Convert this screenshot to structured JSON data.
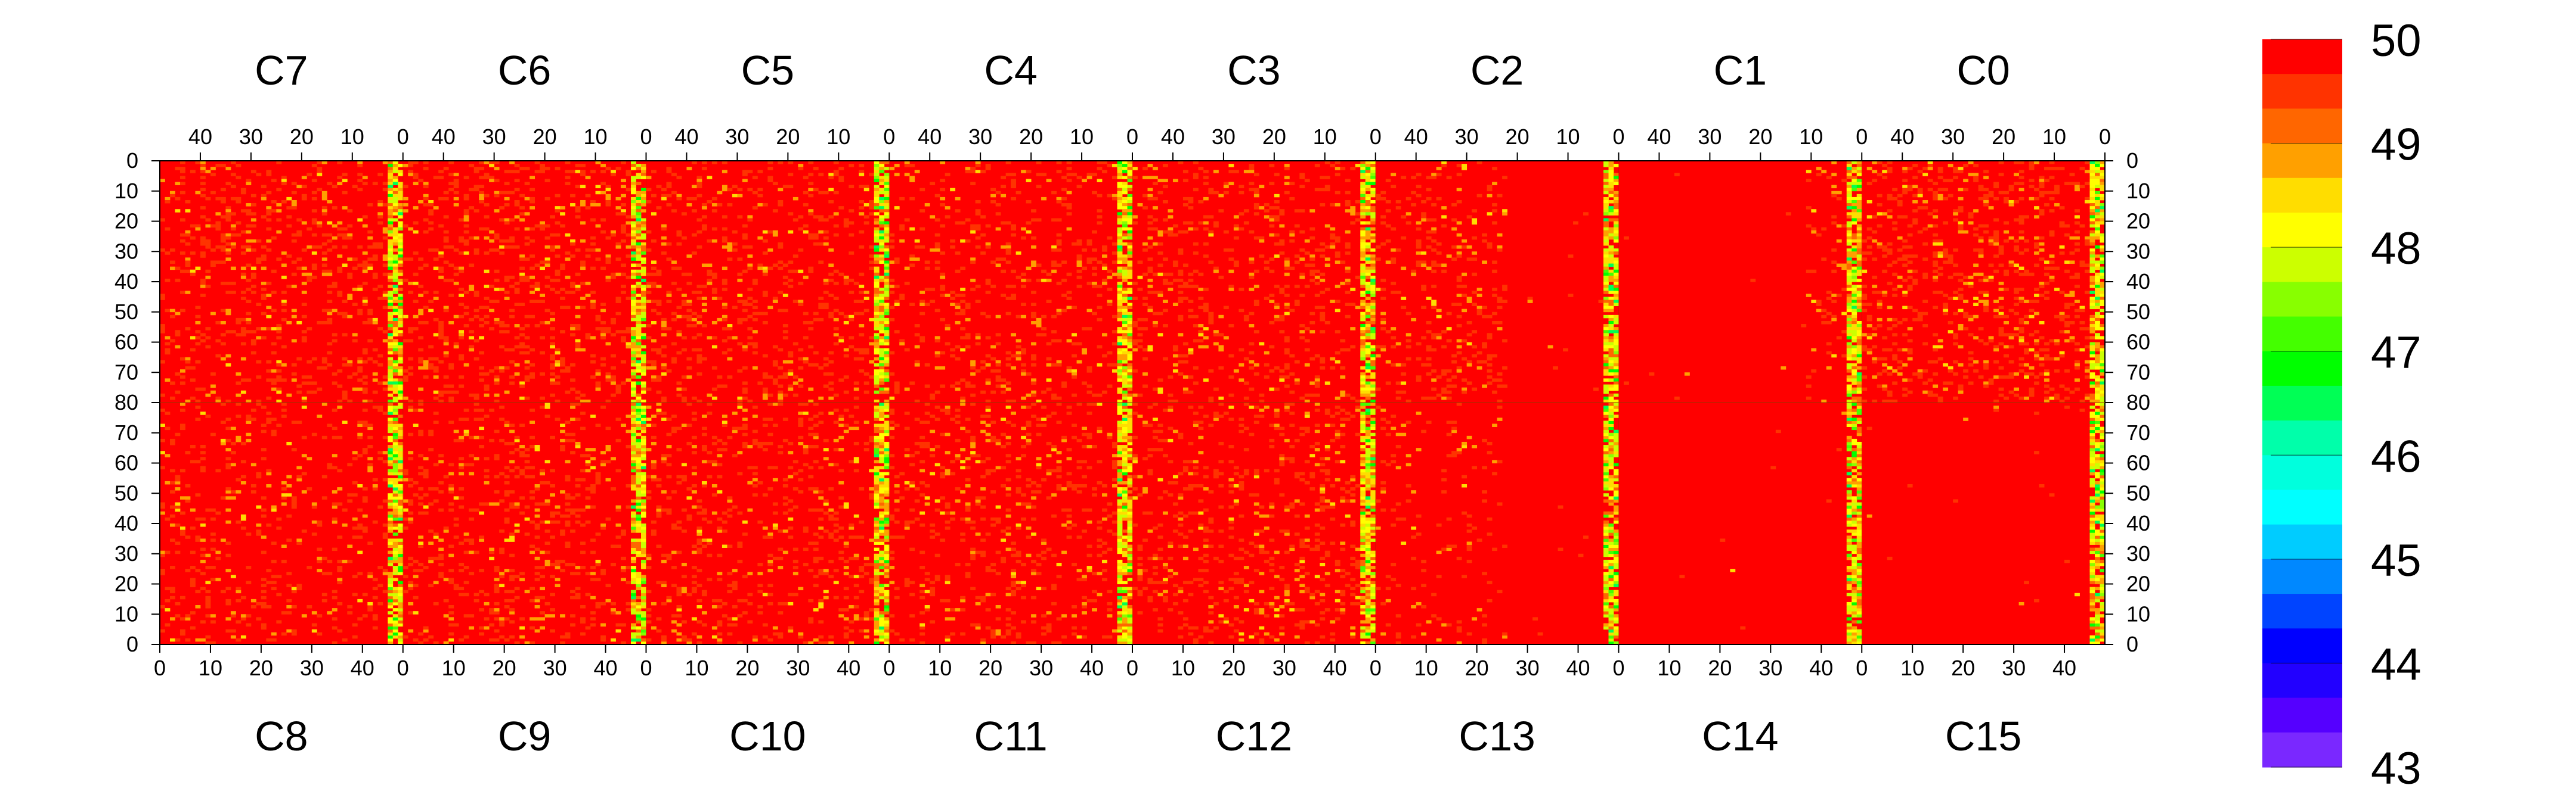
{
  "chart_data": {
    "type": "heatmap",
    "title": "",
    "xlabel": "",
    "ylabel": "",
    "top_row_labels": [
      "C7",
      "C6",
      "C5",
      "C4",
      "C3",
      "C2",
      "C1",
      "C0"
    ],
    "bottom_row_labels": [
      "C8",
      "C9",
      "C10",
      "C11",
      "C12",
      "C13",
      "C14",
      "C15"
    ],
    "top_tick_labels": [
      "40",
      "30",
      "20",
      "10",
      "0"
    ],
    "top_tick_values": [
      40,
      30,
      20,
      10,
      0
    ],
    "bottom_tick_labels": [
      "0",
      "10",
      "20",
      "30",
      "40"
    ],
    "bottom_tick_values": [
      0,
      10,
      20,
      30,
      40
    ],
    "y_tick_labels_top": [
      "0",
      "10",
      "20",
      "30",
      "40",
      "50",
      "60",
      "70",
      "80"
    ],
    "y_tick_labels_bottom": [
      "70",
      "60",
      "50",
      "40",
      "30",
      "20",
      "10",
      "0"
    ],
    "columns_per_block": 48,
    "rows_per_half": 80,
    "z_range": [
      43,
      50
    ],
    "colorbar": {
      "tick_labels": [
        "50",
        "49",
        "48",
        "47",
        "46",
        "45",
        "44",
        "43"
      ],
      "tick_values": [
        50,
        49,
        48,
        47,
        46,
        45,
        44,
        43
      ],
      "colors": [
        "#ff0000",
        "#ff3300",
        "#ff6600",
        "#ffa000",
        "#ffdd00",
        "#ffff00",
        "#ccff00",
        "#88ff00",
        "#44ff00",
        "#00ff00",
        "#00ff55",
        "#00ffaa",
        "#00ffdd",
        "#00ffff",
        "#00ccff",
        "#0088ff",
        "#0044ff",
        "#0000ff",
        "#2200ff",
        "#5500ff",
        "#7a28ff"
      ]
    },
    "dominant_value": 50,
    "edge_column_value": 48.5
  }
}
